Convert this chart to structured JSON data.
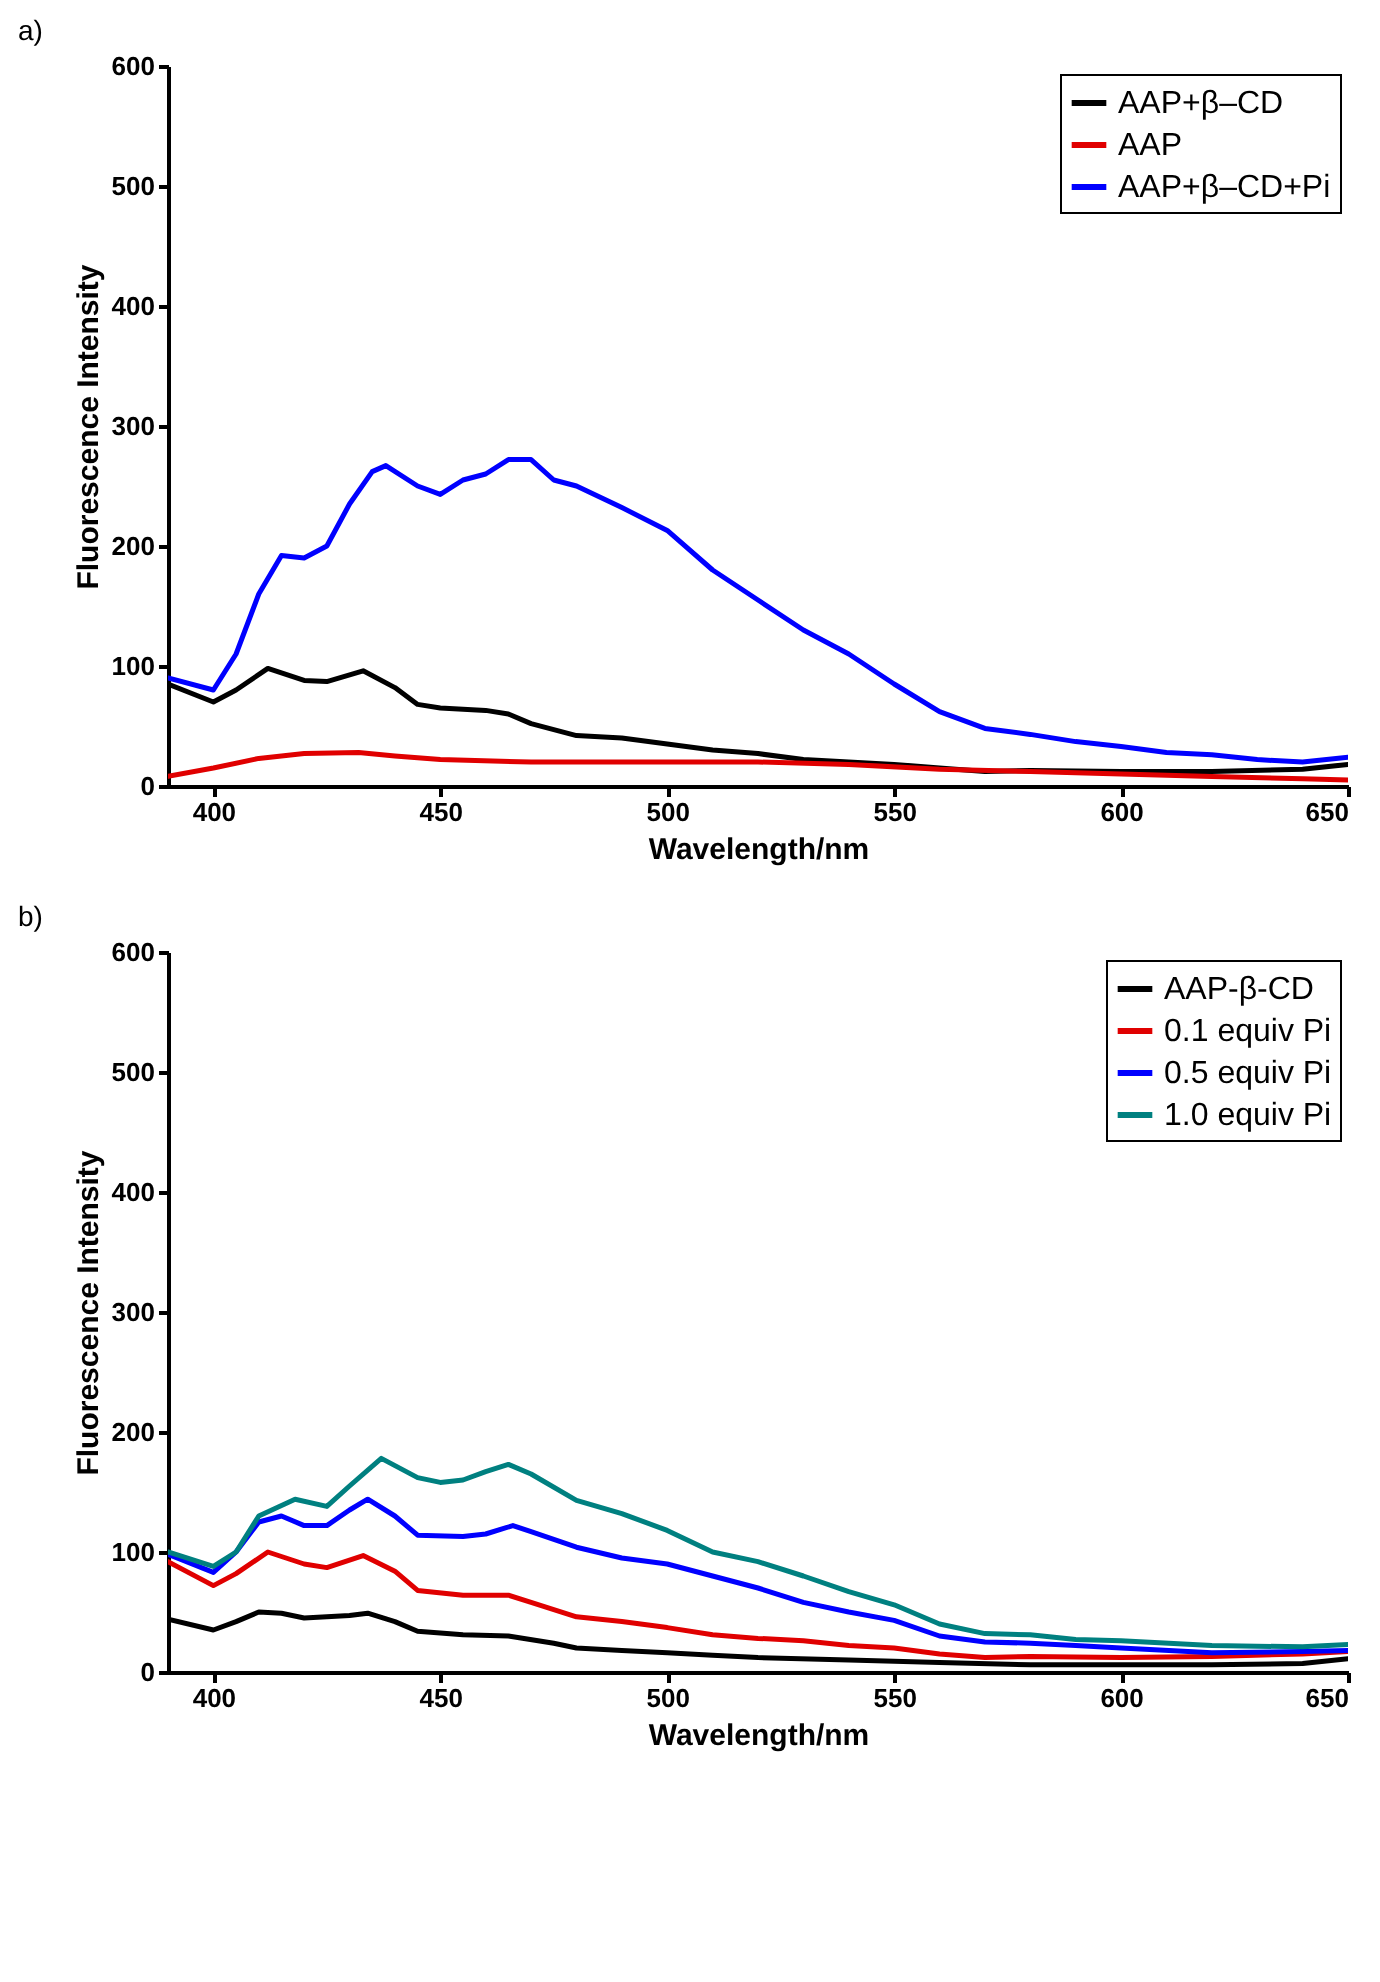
{
  "chart_data": [
    {
      "type": "line",
      "title": "a)",
      "xlabel": "Wavelength/nm",
      "ylabel": "Fluorescence Intensity",
      "xlim": [
        390,
        650
      ],
      "xticks": [
        400,
        450,
        500,
        550,
        600,
        650
      ],
      "ylim": [
        0,
        600
      ],
      "yticks": [
        0,
        100,
        200,
        300,
        400,
        500,
        600
      ],
      "grid": false,
      "legend": "top right",
      "line_style": "solid",
      "marker": "none",
      "series": [
        {
          "name": "AAP+β–CD",
          "color": "#000000",
          "x": [
            390,
            400,
            405,
            412,
            420,
            425,
            433,
            440,
            445,
            450,
            460,
            465,
            470,
            480,
            490,
            500,
            510,
            520,
            530,
            540,
            550,
            560,
            570,
            580,
            600,
            620,
            640,
            650
          ],
          "values": [
            85,
            70,
            80,
            98,
            88,
            87,
            96,
            82,
            68,
            65,
            63,
            60,
            52,
            42,
            40,
            35,
            30,
            27,
            22,
            20,
            18,
            15,
            12,
            13,
            12,
            12,
            14,
            18
          ]
        },
        {
          "name": "AAP",
          "color": "#e00000",
          "x": [
            390,
            400,
            410,
            420,
            432,
            440,
            450,
            470,
            500,
            520,
            540,
            560,
            580,
            600,
            620,
            640,
            650
          ],
          "values": [
            8,
            15,
            23,
            27,
            28,
            25,
            22,
            20,
            20,
            20,
            18,
            14,
            12,
            10,
            8,
            6,
            5
          ]
        },
        {
          "name": "AAP+β–CD+Pi",
          "color": "#0000ff",
          "x": [
            390,
            400,
            405,
            410,
            415,
            420,
            425,
            430,
            435,
            438,
            445,
            450,
            455,
            460,
            465,
            470,
            475,
            480,
            490,
            500,
            510,
            520,
            530,
            540,
            550,
            560,
            570,
            580,
            590,
            600,
            610,
            620,
            630,
            640,
            650
          ],
          "values": [
            90,
            80,
            110,
            160,
            192,
            190,
            200,
            235,
            262,
            267,
            250,
            243,
            255,
            260,
            272,
            272,
            255,
            250,
            232,
            213,
            180,
            155,
            130,
            110,
            85,
            62,
            48,
            43,
            37,
            33,
            28,
            26,
            22,
            20,
            24
          ]
        }
      ]
    },
    {
      "type": "line",
      "title": "b)",
      "xlabel": "Wavelength/nm",
      "ylabel": "Fluorescence Intensity",
      "xlim": [
        390,
        650
      ],
      "xticks": [
        400,
        450,
        500,
        550,
        600,
        650
      ],
      "ylim": [
        0,
        600
      ],
      "yticks": [
        0,
        100,
        200,
        300,
        400,
        500,
        600
      ],
      "grid": false,
      "legend": "top right",
      "line_style": "solid",
      "marker": "none",
      "series": [
        {
          "name": "AAP-β-CD",
          "color": "#000000",
          "x": [
            390,
            400,
            405,
            410,
            415,
            420,
            430,
            434,
            440,
            445,
            455,
            465,
            475,
            480,
            490,
            500,
            510,
            520,
            540,
            560,
            580,
            600,
            620,
            640,
            650
          ],
          "values": [
            44,
            35,
            42,
            50,
            49,
            45,
            47,
            49,
            42,
            34,
            31,
            30,
            24,
            20,
            18,
            16,
            14,
            12,
            10,
            8,
            6,
            6,
            6,
            7,
            11
          ]
        },
        {
          "name": "0.1 equiv Pi",
          "color": "#e00000",
          "x": [
            390,
            400,
            405,
            412,
            420,
            425,
            433,
            440,
            445,
            455,
            465,
            470,
            480,
            490,
            500,
            510,
            520,
            530,
            540,
            550,
            560,
            570,
            580,
            600,
            620,
            640,
            650
          ],
          "values": [
            92,
            72,
            82,
            100,
            90,
            87,
            97,
            84,
            68,
            64,
            64,
            58,
            46,
            42,
            37,
            31,
            28,
            26,
            22,
            20,
            15,
            12,
            13,
            12,
            13,
            15,
            17
          ]
        },
        {
          "name": "0.5 equiv Pi",
          "color": "#0000ff",
          "x": [
            390,
            400,
            405,
            410,
            415,
            420,
            425,
            430,
            434,
            440,
            445,
            455,
            460,
            466,
            470,
            480,
            490,
            500,
            510,
            520,
            530,
            540,
            550,
            560,
            570,
            580,
            590,
            600,
            620,
            640,
            650
          ],
          "values": [
            98,
            83,
            100,
            125,
            130,
            122,
            122,
            135,
            144,
            130,
            114,
            113,
            115,
            122,
            117,
            104,
            95,
            90,
            80,
            70,
            58,
            50,
            43,
            30,
            25,
            24,
            22,
            20,
            16,
            17,
            18
          ]
        },
        {
          "name": "1.0 equiv Pi",
          "color": "#008080",
          "x": [
            390,
            400,
            405,
            410,
            418,
            425,
            430,
            437,
            445,
            450,
            455,
            460,
            465,
            470,
            480,
            490,
            500,
            510,
            520,
            530,
            540,
            550,
            560,
            570,
            580,
            590,
            600,
            620,
            640,
            650
          ],
          "values": [
            100,
            88,
            100,
            130,
            144,
            138,
            155,
            178,
            162,
            158,
            160,
            167,
            173,
            165,
            143,
            132,
            118,
            100,
            92,
            80,
            67,
            56,
            40,
            32,
            31,
            27,
            26,
            22,
            21,
            23
          ]
        }
      ]
    }
  ]
}
